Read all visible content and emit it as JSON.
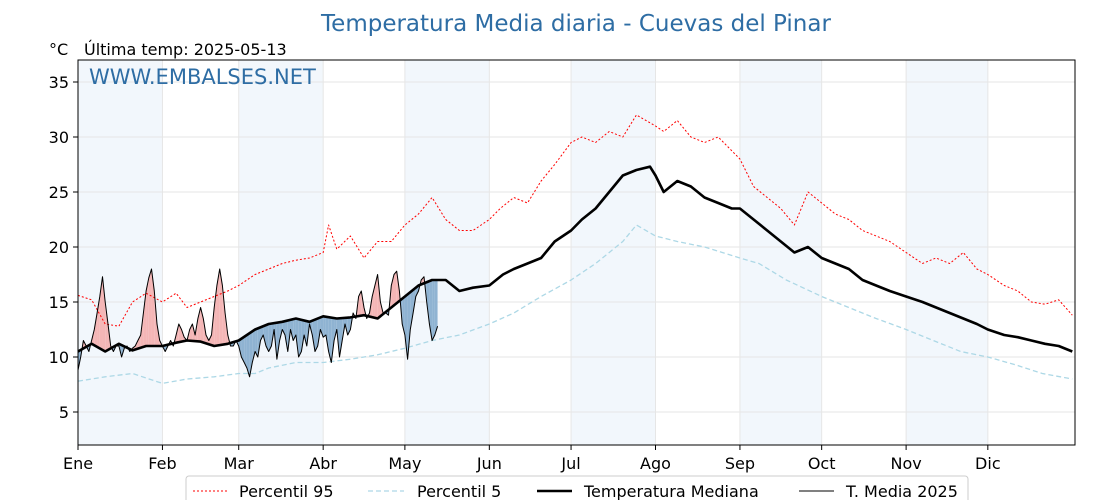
{
  "page": {
    "title": "Temperatura Media diaria - Cuevas del Pinar",
    "unit": "°C",
    "subtitle": "Última temp: 2025-05-13",
    "watermark": "WWW.EMBALSES.NET"
  },
  "chart_data": {
    "type": "line",
    "title": "Temperatura Media diaria - Cuevas del Pinar",
    "ylabel": "°C",
    "xlim": [
      0,
      366
    ],
    "ylim": [
      2,
      37
    ],
    "yticks": [
      5,
      10,
      15,
      20,
      25,
      30,
      35
    ],
    "month_labels": [
      "Ene",
      "Feb",
      "Mar",
      "Abr",
      "May",
      "Jun",
      "Jul",
      "Ago",
      "Sep",
      "Oct",
      "Nov",
      "Dic"
    ],
    "month_starts": [
      0,
      31,
      59,
      90,
      120,
      151,
      181,
      212,
      243,
      273,
      304,
      334
    ],
    "grid": true,
    "legend_position": "bottom",
    "colors": {
      "p95": "#ff0000",
      "p5": "#add8e6",
      "median": "#000000",
      "current": "#000000",
      "above": "#f4b6b6",
      "below": "#8fb3d2",
      "title": "#2e6da4",
      "band": "#f2f7fc"
    },
    "series": [
      {
        "name": "Percentil 95",
        "style": "dotted-red",
        "x": [
          0,
          5,
          10,
          15,
          20,
          25,
          31,
          36,
          40,
          45,
          50,
          55,
          59,
          65,
          70,
          75,
          80,
          85,
          90,
          92,
          95,
          100,
          105,
          110,
          115,
          120,
          125,
          130,
          135,
          140,
          145,
          151,
          155,
          160,
          165,
          170,
          175,
          181,
          185,
          190,
          195,
          200,
          205,
          212,
          215,
          220,
          225,
          230,
          235,
          243,
          248,
          253,
          258,
          263,
          268,
          273,
          278,
          283,
          288,
          293,
          298,
          304,
          310,
          315,
          320,
          325,
          330,
          334,
          340,
          345,
          350,
          355,
          360,
          365
        ],
        "values": [
          15.6,
          15.2,
          13.0,
          12.8,
          15.0,
          15.8,
          15.0,
          15.8,
          14.5,
          15.0,
          15.5,
          16.0,
          16.5,
          17.5,
          18.0,
          18.5,
          18.8,
          19.0,
          19.5,
          22.0,
          19.8,
          21.0,
          19.0,
          20.5,
          20.5,
          22.0,
          23.0,
          24.5,
          22.5,
          21.5,
          21.5,
          22.5,
          23.5,
          24.5,
          24.0,
          26.0,
          27.5,
          29.5,
          30.0,
          29.5,
          30.5,
          30.0,
          32.0,
          31.0,
          30.5,
          31.5,
          30.0,
          29.5,
          30.0,
          28.0,
          25.5,
          24.5,
          23.5,
          22.0,
          25.0,
          24.0,
          23.0,
          22.5,
          21.5,
          21.0,
          20.5,
          19.5,
          18.5,
          19.0,
          18.5,
          19.5,
          18.0,
          17.5,
          16.5,
          16.0,
          15.0,
          14.8,
          15.2,
          13.8
        ]
      },
      {
        "name": "Percentil 5",
        "style": "dashed-lightblue",
        "x": [
          0,
          10,
          20,
          31,
          40,
          50,
          59,
          65,
          70,
          80,
          90,
          100,
          110,
          120,
          130,
          140,
          151,
          160,
          170,
          181,
          190,
          200,
          205,
          212,
          220,
          230,
          243,
          250,
          260,
          273,
          283,
          293,
          304,
          314,
          324,
          334,
          344,
          354,
          365
        ],
        "values": [
          7.8,
          8.2,
          8.5,
          7.6,
          8.0,
          8.2,
          8.5,
          8.5,
          9.0,
          9.5,
          9.5,
          9.8,
          10.2,
          10.8,
          11.5,
          12.0,
          13.0,
          14.0,
          15.5,
          17.0,
          18.5,
          20.5,
          22.0,
          21.0,
          20.5,
          20.0,
          19.0,
          18.5,
          17.0,
          15.5,
          14.5,
          13.5,
          12.5,
          11.5,
          10.5,
          10.0,
          9.3,
          8.5,
          8.0
        ]
      },
      {
        "name": "Temperatura Mediana",
        "style": "thick-black",
        "x": [
          0,
          5,
          10,
          15,
          20,
          25,
          31,
          36,
          40,
          45,
          50,
          55,
          59,
          65,
          70,
          75,
          80,
          85,
          90,
          95,
          100,
          105,
          110,
          115,
          120,
          125,
          130,
          135,
          140,
          145,
          151,
          156,
          160,
          165,
          170,
          175,
          181,
          185,
          190,
          195,
          200,
          205,
          210,
          212,
          215,
          220,
          225,
          230,
          235,
          240,
          243,
          248,
          253,
          258,
          263,
          268,
          273,
          278,
          283,
          288,
          293,
          298,
          304,
          310,
          315,
          320,
          325,
          330,
          334,
          340,
          345,
          350,
          355,
          360,
          365
        ],
        "values": [
          10.5,
          11.2,
          10.5,
          11.2,
          10.6,
          11.0,
          11.0,
          11.3,
          11.5,
          11.4,
          11.0,
          11.2,
          11.5,
          12.5,
          13.0,
          13.2,
          13.5,
          13.2,
          13.7,
          13.5,
          13.6,
          13.8,
          13.5,
          14.5,
          15.5,
          16.5,
          17.0,
          17.0,
          16.0,
          16.3,
          16.5,
          17.5,
          18.0,
          18.5,
          19.0,
          20.5,
          21.5,
          22.5,
          23.5,
          25.0,
          26.5,
          27.0,
          27.3,
          26.5,
          25.0,
          26.0,
          25.5,
          24.5,
          24.0,
          23.5,
          23.5,
          22.5,
          21.5,
          20.5,
          19.5,
          20.0,
          19.0,
          18.5,
          18.0,
          17.0,
          16.5,
          16.0,
          15.5,
          15.0,
          14.5,
          14.0,
          13.5,
          13.0,
          12.5,
          12.0,
          11.8,
          11.5,
          11.2,
          11.0,
          10.5
        ]
      },
      {
        "name": "T. Media 2025",
        "style": "thin-black",
        "x": [
          0,
          1,
          2,
          3,
          4,
          5,
          6,
          7,
          8,
          9,
          10,
          11,
          12,
          13,
          14,
          15,
          16,
          17,
          18,
          19,
          20,
          21,
          22,
          23,
          24,
          25,
          26,
          27,
          28,
          29,
          30,
          31,
          32,
          33,
          34,
          35,
          36,
          37,
          38,
          39,
          40,
          41,
          42,
          43,
          44,
          45,
          46,
          47,
          48,
          49,
          50,
          51,
          52,
          53,
          54,
          55,
          56,
          57,
          58,
          59,
          60,
          61,
          62,
          63,
          64,
          65,
          66,
          67,
          68,
          69,
          70,
          71,
          72,
          73,
          74,
          75,
          76,
          77,
          78,
          79,
          80,
          81,
          82,
          83,
          84,
          85,
          86,
          87,
          88,
          89,
          90,
          91,
          92,
          93,
          94,
          95,
          96,
          97,
          98,
          99,
          100,
          101,
          102,
          103,
          104,
          105,
          106,
          107,
          108,
          109,
          110,
          111,
          112,
          113,
          114,
          115,
          116,
          117,
          118,
          119,
          120,
          121,
          122,
          123,
          124,
          125,
          126,
          127,
          128,
          129,
          130,
          131,
          132
        ],
        "values": [
          8.8,
          10.0,
          11.5,
          11.0,
          10.5,
          11.5,
          12.5,
          14.0,
          15.5,
          17.3,
          15.0,
          13.0,
          11.0,
          10.5,
          11.0,
          11.0,
          10.0,
          10.8,
          11.0,
          10.5,
          10.8,
          11.0,
          11.5,
          12.0,
          14.0,
          16.0,
          17.2,
          18.0,
          16.0,
          13.0,
          11.5,
          11.0,
          10.5,
          11.0,
          11.5,
          11.0,
          12.0,
          13.0,
          12.5,
          11.8,
          11.5,
          12.5,
          13.0,
          12.0,
          13.5,
          14.5,
          13.5,
          12.0,
          11.5,
          12.0,
          14.5,
          16.5,
          18.0,
          16.5,
          14.0,
          12.0,
          11.0,
          11.0,
          11.5,
          11.0,
          10.0,
          9.5,
          9.0,
          8.2,
          9.5,
          10.5,
          10.0,
          11.5,
          12.0,
          11.0,
          10.5,
          11.0,
          12.5,
          9.8,
          11.5,
          12.5,
          12.0,
          10.5,
          12.5,
          11.5,
          12.0,
          10.0,
          10.5,
          12.0,
          11.0,
          13.0,
          12.0,
          10.5,
          11.0,
          12.5,
          11.8,
          12.0,
          10.5,
          9.5,
          11.5,
          12.5,
          10.0,
          11.5,
          13.0,
          12.0,
          12.5,
          14.0,
          13.5,
          15.5,
          16.0,
          14.5,
          13.5,
          14.0,
          15.5,
          16.5,
          17.5,
          15.0,
          14.0,
          14.0,
          13.8,
          16.5,
          17.5,
          17.8,
          16.0,
          13.0,
          12.0,
          9.8,
          12.5,
          14.0,
          15.5,
          16.0,
          17.0,
          17.3,
          15.0,
          13.0,
          11.5,
          12.0,
          12.8
        ]
      }
    ]
  }
}
